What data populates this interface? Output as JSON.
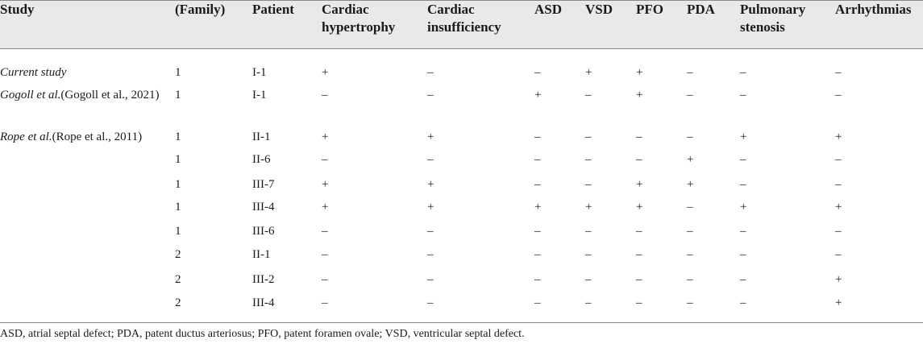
{
  "table": {
    "columns": [
      "Study",
      "(Family)",
      "Patient",
      "Cardiac hypertrophy",
      "Cardiac insufficiency",
      "ASD",
      "VSD",
      "PFO",
      "PDA",
      "Pulmonary stenosis",
      "Arrhythmias"
    ],
    "rows": [
      {
        "study_em": "Current study",
        "study_ref": "",
        "family": "1",
        "patient": "I-1",
        "hyper": "+",
        "insuff": "–",
        "asd": "–",
        "vsd": "+",
        "pfo": "+",
        "pda": "–",
        "ps": "–",
        "arr": "–"
      },
      {
        "study_em": "Gogoll et al.",
        "study_ref": "(Gogoll et al., 2021)",
        "family": "1",
        "patient": "I-1",
        "hyper": "–",
        "insuff": "–",
        "asd": "+",
        "vsd": "–",
        "pfo": "+",
        "pda": "–",
        "ps": "–",
        "arr": "–"
      },
      {
        "study_em": "Rope et al.",
        "study_ref": "(Rope et al., 2011)",
        "family": "1",
        "patient": "II-1",
        "hyper": "+",
        "insuff": "+",
        "asd": "–",
        "vsd": "–",
        "pfo": "–",
        "pda": "–",
        "ps": "+",
        "arr": "+"
      },
      {
        "study_em": "",
        "study_ref": "",
        "family": "1",
        "patient": "II-6",
        "hyper": "–",
        "insuff": "–",
        "asd": "–",
        "vsd": "–",
        "pfo": "–",
        "pda": "+",
        "ps": "–",
        "arr": "–"
      },
      {
        "study_em": "",
        "study_ref": "",
        "family": "1",
        "patient": "III-7",
        "hyper": "+",
        "insuff": "+",
        "asd": "–",
        "vsd": "–",
        "pfo": "+",
        "pda": "+",
        "ps": "–",
        "arr": "–"
      },
      {
        "study_em": "",
        "study_ref": "",
        "family": "1",
        "patient": "III-4",
        "hyper": "+",
        "insuff": "+",
        "asd": "+",
        "vsd": "+",
        "pfo": "+",
        "pda": "–",
        "ps": "+",
        "arr": "+"
      },
      {
        "study_em": "",
        "study_ref": "",
        "family": "1",
        "patient": "III-6",
        "hyper": "–",
        "insuff": "–",
        "asd": "–",
        "vsd": "–",
        "pfo": "–",
        "pda": "–",
        "ps": "–",
        "arr": "–"
      },
      {
        "study_em": "",
        "study_ref": "",
        "family": "2",
        "patient": "II-1",
        "hyper": "–",
        "insuff": "–",
        "asd": "–",
        "vsd": "–",
        "pfo": "–",
        "pda": "–",
        "ps": "–",
        "arr": "–"
      },
      {
        "study_em": "",
        "study_ref": "",
        "family": "2",
        "patient": "III-2",
        "hyper": "–",
        "insuff": "–",
        "asd": "–",
        "vsd": "–",
        "pfo": "–",
        "pda": "–",
        "ps": "–",
        "arr": "+"
      },
      {
        "study_em": "",
        "study_ref": "",
        "family": "2",
        "patient": "III-4",
        "hyper": "–",
        "insuff": "–",
        "asd": "–",
        "vsd": "–",
        "pfo": "–",
        "pda": "–",
        "ps": "–",
        "arr": "+"
      }
    ]
  },
  "footnote": "ASD, atrial septal defect; PDA, patent ductus arteriosus; PFO, patent foramen ovale; VSD, ventricular septal defect.",
  "colors": {
    "header_background": "#e8e9ea",
    "rule": "#8a8a8a",
    "text": "#1a1a1a"
  }
}
